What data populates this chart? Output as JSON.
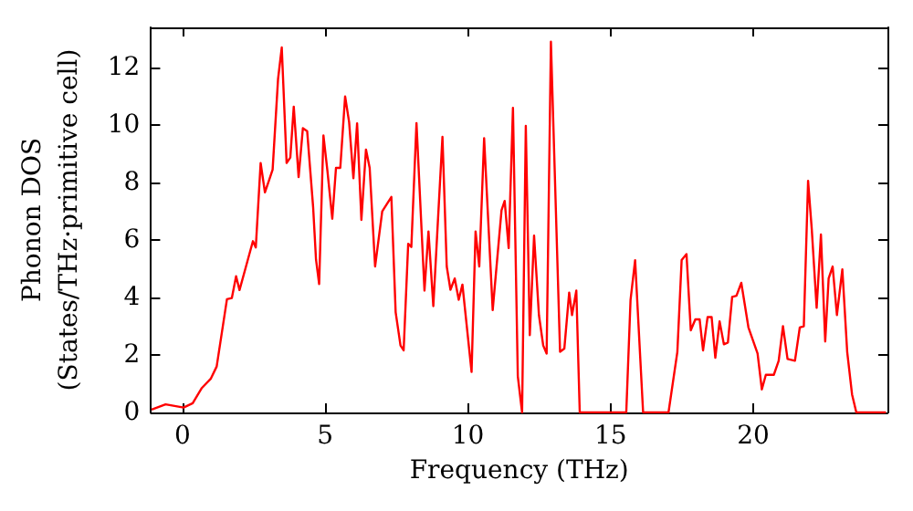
{
  "chart_data": {
    "type": "line",
    "xlabel": "Frequency (THz)",
    "ylabel": "Phonon DOS\n(States/THz·primitive cell)",
    "xlim": [
      -1.1,
      24.7
    ],
    "ylim": [
      0,
      13.4
    ],
    "xticks": [
      0,
      5,
      10,
      15,
      20
    ],
    "yticks": [
      0,
      2,
      4,
      6,
      8,
      10,
      12
    ],
    "grid": false,
    "marker": "none",
    "line_style": "solid",
    "x": [
      -1.08,
      -0.59,
      0.04,
      0.36,
      0.68,
      0.99,
      1.2,
      1.56,
      1.73,
      1.88,
      2.0,
      2.26,
      2.47,
      2.57,
      2.74,
      2.89,
      3.04,
      3.16,
      3.35,
      3.48,
      3.65,
      3.78,
      3.9,
      4.07,
      4.22,
      4.37,
      4.58,
      4.68,
      4.79,
      4.94,
      5.08,
      5.25,
      5.38,
      5.53,
      5.7,
      5.84,
      5.99,
      6.12,
      6.27,
      6.43,
      6.56,
      6.75,
      7.0,
      7.32,
      7.47,
      7.64,
      7.75,
      7.91,
      8.02,
      8.2,
      8.48,
      8.62,
      8.79,
      9.11,
      9.26,
      9.39,
      9.54,
      9.68,
      9.81,
      10.13,
      10.27,
      10.4,
      10.57,
      10.87,
      11.18,
      11.29,
      11.43,
      11.58,
      11.75,
      11.9,
      12.03,
      12.17,
      12.32,
      12.49,
      12.64,
      12.76,
      12.91,
      13.23,
      13.38,
      13.55,
      13.65,
      13.8,
      13.92,
      15.55,
      15.7,
      15.86,
      16.14,
      17.03,
      17.34,
      17.49,
      17.66,
      17.81,
      17.97,
      18.12,
      18.24,
      18.4,
      18.54,
      18.67,
      18.82,
      18.97,
      19.11,
      19.26,
      19.41,
      19.58,
      19.83,
      20.15,
      20.3,
      20.44,
      20.72,
      20.89,
      21.04,
      21.2,
      21.46,
      21.63,
      21.77,
      21.92,
      22.05,
      22.22,
      22.37,
      22.52,
      22.64,
      22.78,
      22.93,
      23.12,
      23.29,
      23.46,
      23.61,
      24.65
    ],
    "series": [
      {
        "color": "#ff0000",
        "values": [
          0.1,
          0.28,
          0.17,
          0.32,
          0.85,
          1.17,
          1.6,
          3.94,
          3.98,
          4.74,
          4.26,
          5.2,
          5.96,
          5.74,
          8.68,
          7.66,
          8.09,
          8.45,
          11.6,
          12.7,
          8.68,
          8.87,
          10.64,
          8.19,
          9.89,
          9.79,
          7.13,
          5.32,
          4.47,
          9.64,
          8.4,
          6.74,
          8.51,
          8.51,
          11.0,
          10.1,
          8.15,
          10.06,
          6.7,
          9.15,
          8.51,
          5.08,
          7.0,
          7.5,
          3.49,
          2.33,
          2.16,
          5.87,
          5.76,
          10.07,
          4.24,
          6.3,
          3.7,
          9.59,
          5.08,
          4.27,
          4.66,
          3.92,
          4.45,
          1.41,
          6.3,
          5.08,
          9.54,
          3.56,
          7.04,
          7.36,
          5.72,
          10.6,
          1.26,
          0,
          9.97,
          2.69,
          6.15,
          3.39,
          2.33,
          2.05,
          12.9,
          2.11,
          2.22,
          4.17,
          3.39,
          4.24,
          0,
          0,
          3.92,
          5.3,
          0,
          0,
          2.11,
          5.3,
          5.51,
          2.86,
          3.24,
          3.24,
          2.16,
          3.32,
          3.32,
          1.9,
          3.17,
          2.37,
          2.43,
          4.02,
          4.06,
          4.51,
          2.96,
          2.05,
          0.8,
          1.31,
          1.31,
          1.8,
          3.0,
          1.86,
          1.8,
          2.96,
          3.0,
          8.06,
          6.36,
          3.64,
          6.19,
          2.47,
          4.66,
          5.08,
          3.39,
          4.98,
          2.11,
          0.63,
          0,
          0
        ]
      }
    ]
  }
}
